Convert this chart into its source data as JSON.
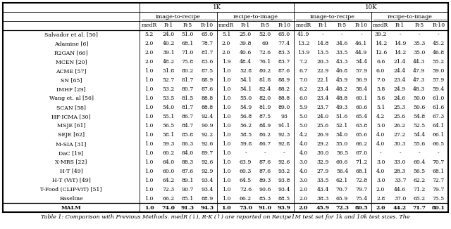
{
  "title_caption": "Table 1: Comparison with Previous Methods. medR (↓), R-K (↑) are reported on Recipe1M test set for 1k and 10k test sizes. The",
  "rows": [
    {
      "method": "Salvador et al. [50]",
      "data": [
        "5.2",
        "24.0",
        "51.0",
        "65.0",
        "5.1",
        "25.0",
        "52.0",
        "65.0",
        "41.9",
        "-",
        "-",
        "-",
        "39.2",
        "-",
        "-",
        "-"
      ]
    },
    {
      "method": "Adamine [6]",
      "data": [
        "2.0",
        "40.2",
        "68.1",
        "78.7",
        "2.0",
        "39.8",
        "69",
        "77.4",
        "13.2",
        "14.8",
        "34.6",
        "46.1",
        "14.2",
        "14.9",
        "35.3",
        "45.2"
      ]
    },
    {
      "method": "R2GAN [66]",
      "data": [
        "2.0",
        "39.1",
        "71.0",
        "81.7",
        "2.0",
        "40.6",
        "72.6",
        "83.3",
        "13.9",
        "13.5",
        "33.5",
        "44.9",
        "12.6",
        "14.2",
        "35.0",
        "46.8"
      ]
    },
    {
      "method": "MCEN [20]",
      "data": [
        "2.0",
        "48.2",
        "75.8",
        "83.6",
        "1.9",
        "48.4",
        "76.1",
        "83.7",
        "7.2",
        "20.3",
        "43.3",
        "54.4",
        "6.6",
        "21.4",
        "44.3",
        "55.2"
      ]
    },
    {
      "method": "ACME [57]",
      "data": [
        "1.0",
        "51.8",
        "80.2",
        "87.5",
        "1.0",
        "52.8",
        "80.2",
        "87.6",
        "6.7",
        "22.9",
        "46.8",
        "57.9",
        "6.0",
        "24.4",
        "47.9",
        "59.0"
      ]
    },
    {
      "method": "SN [65]",
      "data": [
        "1.0",
        "52.7",
        "81.7",
        "88.9",
        "1.0",
        "54.1",
        "81.8",
        "88.9",
        "7.0",
        "22.1",
        "45.9",
        "56.9",
        "7.0",
        "23.4",
        "47.3",
        "57.9"
      ]
    },
    {
      "method": "IMHF [29]",
      "data": [
        "1.0",
        "53.2",
        "80.7",
        "87.6",
        "1.0",
        "54.1",
        "82.4",
        "88.2",
        "6.2",
        "23.4",
        "48.2",
        "58.4",
        "5.8",
        "24.9",
        "48.3",
        "59.4"
      ]
    },
    {
      "method": "Wang et. al [56]",
      "data": [
        "1.0",
        "53.5",
        "81.5",
        "88.8",
        "1.0",
        "55.0",
        "82.0",
        "88.8",
        "6.0",
        "23.4",
        "48.8",
        "60.1",
        "5.6",
        "24.6",
        "50.0",
        "61.0"
      ]
    },
    {
      "method": "SCAN [58]",
      "data": [
        "1.0",
        "54.0",
        "81.7",
        "88.8",
        "1.0",
        "54.9",
        "81.9",
        "89.0",
        "5.9",
        "23.7",
        "49.3",
        "60.6",
        "5.1",
        "25.3",
        "50.6",
        "61.6"
      ]
    },
    {
      "method": "HF-ICMA [30]",
      "data": [
        "1.0",
        "55.1",
        "86.7",
        "92.4",
        "1.0",
        "56.8",
        "87.5",
        "93",
        "5.0",
        "24.0",
        "51.6",
        "65.4",
        "4.2",
        "25.6",
        "54.8",
        "67.3"
      ]
    },
    {
      "method": "MSJE [61]",
      "data": [
        "1.0",
        "56.5",
        "84.7",
        "90.9",
        "1.0",
        "56.2",
        "84.9",
        "91.1",
        "5.0",
        "25.6",
        "52.1",
        "63.8",
        "5.0",
        "26.2",
        "52.5",
        "64.1"
      ]
    },
    {
      "method": "SEJE [62]",
      "data": [
        "1.0",
        "58.1",
        "85.8",
        "92.2",
        "1.0",
        "58.5",
        "86.2",
        "92.3",
        "4.2",
        "26.9",
        "54.0",
        "65.6",
        "4.0",
        "27.2",
        "54.4",
        "66.1"
      ]
    },
    {
      "method": "M-SIA [31]",
      "data": [
        "1.0",
        "59.3",
        "86.3",
        "92.6",
        "1.0",
        "59.8",
        "86.7",
        "92.8",
        "4.0",
        "29.2",
        "55.0",
        "66.2",
        "4.0",
        "30.3",
        "55.6",
        "66.5"
      ]
    },
    {
      "method": "DaC [19]",
      "data": [
        "1.0",
        "60.2",
        "84.0",
        "89.7",
        "1.0",
        "-",
        "-",
        "-",
        "4.0",
        "30.0",
        "56.5",
        "67.0",
        "-",
        "-",
        "-",
        "-"
      ]
    },
    {
      "method": "X-MRS [22]",
      "data": [
        "1.0",
        "64.0",
        "88.3",
        "92.6",
        "1.0",
        "63.9",
        "87.6",
        "92.6",
        "3.0",
        "32.9",
        "60.6",
        "71.2",
        "3.0",
        "33.0",
        "60.4",
        "70.7"
      ]
    },
    {
      "method": "H-T [49]",
      "data": [
        "1.0",
        "60.0",
        "87.6",
        "92.9",
        "1.0",
        "60.3",
        "87.6",
        "93.2",
        "4.0",
        "27.9",
        "56.4",
        "68.1",
        "4.0",
        "28.3",
        "56.5",
        "68.1"
      ]
    },
    {
      "method": "H-T (ViT) [49]",
      "data": [
        "1.0",
        "64.2",
        "89.1",
        "93.4",
        "1.0",
        "64.5",
        "89.3",
        "93.8",
        "3.0",
        "33.5",
        "62.1",
        "72.8",
        "3.0",
        "33.7",
        "62.2",
        "72.7"
      ]
    },
    {
      "method": "T-Food (CLIP-ViT) [51]",
      "data": [
        "1.0",
        "72.3",
        "90.7",
        "93.4",
        "1.0",
        "72.6",
        "90.6",
        "93.4",
        "2.0",
        "43.4",
        "70.7",
        "79.7",
        "2.0",
        "44.6",
        "71.2",
        "79.7"
      ]
    },
    {
      "method": "Baseline",
      "data": [
        "1.0",
        "66.2",
        "85.1",
        "88.9",
        "1.0",
        "66.2",
        "85.3",
        "88.5",
        "2.0",
        "38.3",
        "65.9",
        "75.4",
        "2.8",
        "37.0",
        "65.2",
        "75.5"
      ]
    },
    {
      "method": "MALM",
      "data": [
        "1.0",
        "74.0",
        "91.3",
        "94.3",
        "1.0",
        "73.0",
        "91.0",
        "93.9",
        "2.0",
        "45.9",
        "72.3",
        "80.5",
        "2.0",
        "44.2",
        "71.7",
        "80.1"
      ],
      "bold": true
    }
  ],
  "separator_before": "MALM",
  "background_color": "#ffffff",
  "font_size": 5.8,
  "header_font_size": 6.2,
  "caption_font_size": 5.8
}
